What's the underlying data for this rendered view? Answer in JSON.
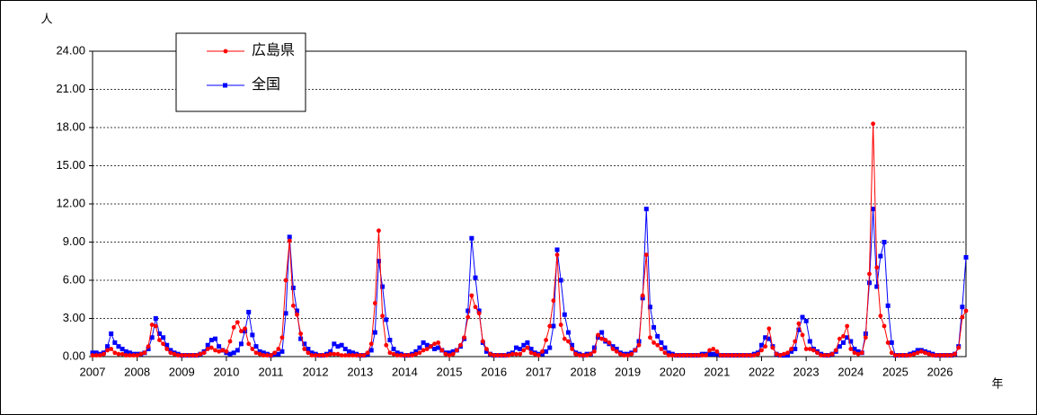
{
  "chart_data": {
    "type": "line",
    "y_label": "人",
    "x_label": "年",
    "categories": [
      "2007",
      null,
      null,
      null,
      null,
      null,
      null,
      null,
      null,
      null,
      null,
      null,
      "2008",
      null,
      null,
      null,
      null,
      null,
      null,
      null,
      null,
      null,
      null,
      null,
      "2009",
      null,
      null,
      null,
      null,
      null,
      null,
      null,
      null,
      null,
      null,
      null,
      "2010",
      null,
      null,
      null,
      null,
      null,
      null,
      null,
      null,
      null,
      null,
      null,
      "2011",
      null,
      null,
      null,
      null,
      null,
      null,
      null,
      null,
      null,
      null,
      null,
      "2012",
      null,
      null,
      null,
      null,
      null,
      null,
      null,
      null,
      null,
      null,
      null,
      "2013",
      null,
      null,
      null,
      null,
      null,
      null,
      null,
      null,
      null,
      null,
      null,
      "2014",
      null,
      null,
      null,
      null,
      null,
      null,
      null,
      null,
      null,
      null,
      null,
      "2015",
      null,
      null,
      null,
      null,
      null,
      null,
      null,
      null,
      null,
      null,
      null,
      "2016",
      null,
      null,
      null,
      null,
      null,
      null,
      null,
      null,
      null,
      null,
      null,
      "2017",
      null,
      null,
      null,
      null,
      null,
      null,
      null,
      null,
      null,
      null,
      null,
      "2018",
      null,
      null,
      null,
      null,
      null,
      null,
      null,
      null,
      null,
      null,
      null,
      "2019",
      null,
      null,
      null,
      null,
      null,
      null,
      null,
      null,
      null,
      null,
      null,
      "2020",
      null,
      null,
      null,
      null,
      null,
      null,
      null,
      null,
      null,
      null,
      null,
      "2021",
      null,
      null,
      null,
      null,
      null,
      null,
      null,
      null,
      null,
      null,
      null,
      "2022",
      null,
      null,
      null,
      null,
      null,
      null,
      null,
      null,
      null,
      null,
      null,
      "2023",
      null,
      null,
      null,
      null,
      null,
      null,
      null,
      null,
      null,
      null,
      null,
      "2024",
      null,
      null,
      null,
      null,
      null,
      null,
      null,
      null,
      null,
      null,
      null,
      "2025",
      null,
      null,
      null,
      null,
      null,
      null,
      null,
      null,
      null,
      null,
      null,
      "2026",
      null,
      null,
      null,
      null,
      null,
      null,
      null
    ],
    "series": [
      {
        "name": "広島県",
        "color": "#ff0000",
        "marker": "circle",
        "values": [
          0.1,
          0.1,
          0.1,
          0.2,
          0.5,
          0.6,
          0.3,
          0.2,
          0.2,
          0.1,
          0.1,
          0.1,
          0.1,
          0.2,
          0.3,
          0.8,
          2.5,
          2.4,
          1.3,
          1.0,
          0.6,
          0.3,
          0.2,
          0.1,
          0.1,
          0.1,
          0.1,
          0.1,
          0.1,
          0.2,
          0.3,
          0.6,
          0.7,
          0.5,
          0.4,
          0.5,
          0.4,
          1.2,
          2.3,
          2.7,
          2.0,
          2.2,
          1.0,
          0.6,
          0.3,
          0.2,
          0.1,
          0.1,
          0.1,
          0.3,
          0.6,
          1.5,
          6.0,
          9.1,
          4.0,
          3.3,
          1.8,
          0.6,
          0.3,
          0.1,
          0.1,
          0.1,
          0.1,
          0.1,
          0.2,
          0.2,
          0.2,
          0.1,
          0.1,
          0.1,
          0.1,
          0.1,
          0.1,
          0.1,
          0.3,
          1.0,
          4.2,
          9.9,
          3.2,
          0.9,
          0.3,
          0.2,
          0.1,
          0.1,
          0.1,
          0.1,
          0.1,
          0.2,
          0.3,
          0.5,
          0.6,
          0.8,
          1.0,
          1.1,
          0.5,
          0.2,
          0.1,
          0.2,
          0.5,
          0.9,
          1.5,
          3.1,
          4.8,
          3.9,
          3.4,
          1.2,
          0.6,
          0.2,
          0.1,
          0.1,
          0.1,
          0.1,
          0.1,
          0.2,
          0.2,
          0.2,
          0.5,
          0.7,
          0.3,
          0.2,
          0.1,
          0.4,
          1.3,
          2.4,
          4.4,
          8.0,
          2.5,
          1.4,
          1.2,
          0.6,
          0.2,
          0.1,
          0.1,
          0.1,
          0.2,
          0.4,
          1.7,
          1.4,
          1.3,
          1.1,
          0.6,
          0.4,
          0.2,
          0.1,
          0.1,
          0.2,
          0.5,
          0.9,
          4.8,
          8.0,
          1.5,
          1.1,
          0.9,
          0.6,
          0.3,
          0.1,
          0.1,
          0.1,
          0.1,
          0.1,
          0.1,
          0.1,
          0.1,
          0.1,
          0.1,
          0.1,
          0.5,
          0.6,
          0.4,
          0.1,
          0.1,
          0.1,
          0.1,
          0.1,
          0.1,
          0.1,
          0.1,
          0.1,
          0.1,
          0.2,
          0.5,
          0.8,
          2.2,
          0.7,
          0.2,
          0.1,
          0.2,
          0.3,
          0.6,
          1.2,
          2.6,
          1.7,
          0.6,
          0.6,
          0.5,
          0.3,
          0.1,
          0.1,
          0.1,
          0.2,
          0.5,
          1.4,
          1.6,
          2.4,
          0.6,
          0.3,
          0.2,
          0.3,
          1.5,
          6.5,
          18.3,
          7.0,
          3.2,
          2.4,
          1.1,
          0.3,
          0.1,
          0.1,
          0.1,
          0.1,
          0.1,
          0.2,
          0.3,
          0.4,
          0.3,
          0.2,
          0.1,
          0.1,
          0.1,
          0.1,
          0.1,
          0.1,
          0.2,
          0.7,
          3.1,
          3.6
        ]
      },
      {
        "name": "全国",
        "color": "#0000ff",
        "marker": "square",
        "values": [
          0.3,
          0.3,
          0.2,
          0.3,
          0.8,
          1.8,
          1.1,
          0.8,
          0.6,
          0.4,
          0.3,
          0.2,
          0.2,
          0.2,
          0.3,
          0.6,
          1.5,
          3.0,
          1.8,
          1.5,
          0.9,
          0.5,
          0.3,
          0.2,
          0.1,
          0.1,
          0.1,
          0.1,
          0.1,
          0.2,
          0.4,
          0.9,
          1.3,
          1.4,
          0.8,
          0.5,
          0.3,
          0.2,
          0.3,
          0.5,
          1.0,
          2.0,
          3.5,
          1.7,
          0.8,
          0.4,
          0.3,
          0.2,
          0.1,
          0.2,
          0.2,
          0.4,
          3.4,
          9.4,
          5.4,
          3.6,
          1.4,
          1.0,
          0.6,
          0.3,
          0.2,
          0.1,
          0.1,
          0.2,
          0.4,
          1.0,
          0.8,
          0.9,
          0.6,
          0.4,
          0.3,
          0.2,
          0.1,
          0.1,
          0.2,
          0.5,
          1.9,
          7.5,
          5.5,
          2.9,
          1.3,
          0.6,
          0.3,
          0.2,
          0.1,
          0.1,
          0.2,
          0.4,
          0.7,
          1.1,
          0.9,
          0.8,
          0.6,
          0.7,
          0.5,
          0.3,
          0.3,
          0.4,
          0.5,
          0.8,
          1.4,
          3.6,
          9.3,
          6.2,
          3.6,
          1.1,
          0.4,
          0.2,
          0.1,
          0.1,
          0.1,
          0.1,
          0.2,
          0.3,
          0.7,
          0.6,
          0.9,
          1.1,
          0.6,
          0.3,
          0.2,
          0.2,
          0.4,
          0.7,
          2.4,
          8.4,
          6.0,
          3.3,
          1.9,
          0.9,
          0.3,
          0.2,
          0.1,
          0.2,
          0.2,
          0.7,
          1.5,
          1.9,
          1.2,
          1.0,
          0.8,
          0.6,
          0.3,
          0.2,
          0.2,
          0.3,
          0.5,
          1.2,
          4.6,
          11.6,
          3.9,
          2.3,
          1.6,
          1.1,
          0.7,
          0.3,
          0.2,
          0.1,
          0.1,
          0.1,
          0.1,
          0.1,
          0.1,
          0.1,
          0.2,
          0.2,
          0.2,
          0.2,
          0.2,
          0.1,
          0.1,
          0.1,
          0.1,
          0.1,
          0.1,
          0.1,
          0.1,
          0.1,
          0.2,
          0.3,
          0.9,
          1.5,
          1.4,
          0.8,
          0.2,
          0.1,
          0.1,
          0.1,
          0.4,
          0.6,
          2.1,
          3.1,
          2.8,
          1.2,
          0.6,
          0.4,
          0.2,
          0.1,
          0.1,
          0.2,
          0.4,
          0.8,
          1.1,
          1.5,
          1.2,
          0.6,
          0.4,
          0.3,
          1.8,
          5.8,
          11.6,
          5.5,
          7.9,
          9.0,
          4.0,
          1.1,
          0.1,
          0.1,
          0.1,
          0.1,
          0.2,
          0.3,
          0.5,
          0.5,
          0.4,
          0.3,
          0.2,
          0.1,
          0.1,
          0.1,
          0.1,
          0.1,
          0.2,
          0.8,
          3.9,
          7.8
        ]
      }
    ],
    "ylim": [
      0,
      24
    ],
    "yticks": [
      {
        "value": 0,
        "label": "0.00"
      },
      {
        "value": 3,
        "label": "3.00"
      },
      {
        "value": 6,
        "label": "6.00"
      },
      {
        "value": 9,
        "label": "9.00"
      },
      {
        "value": 12,
        "label": "12.00"
      },
      {
        "value": 15,
        "label": "15.00"
      },
      {
        "value": 18,
        "label": "18.00"
      },
      {
        "value": 21,
        "label": "21.00"
      },
      {
        "value": 24,
        "label": "24.00"
      }
    ],
    "grid": true,
    "legend": "top-left"
  }
}
